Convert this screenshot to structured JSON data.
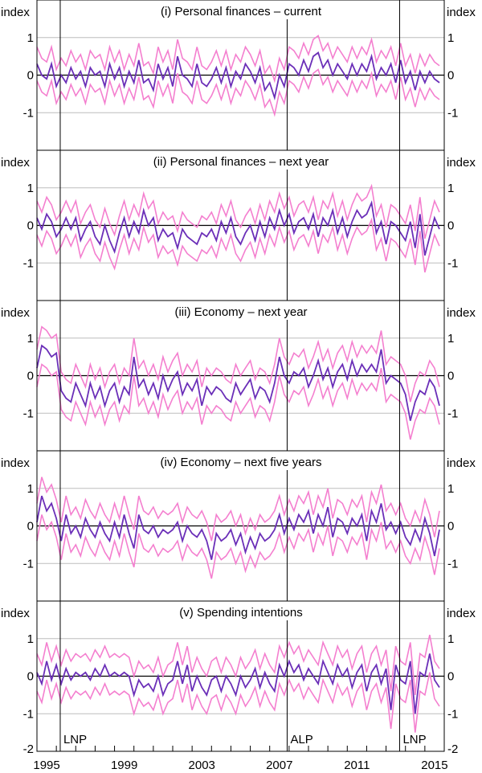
{
  "chart_data": [
    {
      "type": "line",
      "title": "(i) Personal finances – current",
      "ylabel": "index",
      "ylim": [
        -2,
        2
      ],
      "yticks": [
        "1",
        "0",
        "-1"
      ],
      "x_start": 1995.0,
      "x_step": 0.25,
      "band_halfwidth": 0.45,
      "series": [
        {
          "name": "central",
          "values": [
            0.3,
            0.0,
            -0.1,
            0.3,
            -0.3,
            0.0,
            -0.2,
            0.2,
            -0.1,
            0.1,
            -0.3,
            0.2,
            0.0,
            0.1,
            -0.3,
            0.3,
            -0.1,
            0.2,
            -0.3,
            0.1,
            -0.2,
            0.4,
            -0.2,
            -0.1,
            -0.4,
            0.3,
            -0.1,
            0.2,
            -0.3,
            0.5,
            0.0,
            -0.1,
            -0.3,
            0.3,
            -0.2,
            -0.3,
            -0.1,
            0.2,
            -0.2,
            0.2,
            -0.3,
            0.1,
            -0.1,
            0.3,
            0.1,
            -0.2,
            0.2,
            -0.4,
            -0.2,
            -0.6,
            0.0,
            -0.3,
            0.3,
            0.2,
            0.0,
            0.4,
            0.1,
            0.5,
            0.6,
            0.2,
            0.4,
            0.0,
            0.3,
            0.1,
            -0.1,
            0.3,
            0.0,
            0.3,
            0.1,
            0.5,
            -0.1,
            0.2,
            0.0,
            0.3,
            -0.2,
            0.4,
            -0.2,
            0.1,
            -0.4,
            0.1,
            -0.2,
            0.1,
            -0.1,
            -0.2
          ]
        }
      ]
    },
    {
      "type": "line",
      "title": "(ii) Personal finances – next year",
      "ylabel": "index",
      "ylim": [
        -2,
        2
      ],
      "yticks": [
        "1",
        "0",
        "-1"
      ],
      "x_start": 1995.0,
      "x_step": 0.25,
      "band_halfwidth": 0.45,
      "series": [
        {
          "name": "central",
          "values": [
            0.2,
            -0.1,
            0.3,
            0.1,
            -0.3,
            -0.1,
            0.2,
            -0.1,
            0.2,
            -0.4,
            -0.1,
            0.1,
            -0.3,
            -0.5,
            0.0,
            -0.4,
            -0.7,
            -0.2,
            0.2,
            -0.3,
            0.1,
            -0.2,
            0.4,
            0.0,
            0.2,
            -0.4,
            -0.1,
            -0.3,
            -0.2,
            -0.6,
            -0.1,
            -0.3,
            -0.4,
            -0.5,
            -0.2,
            -0.3,
            -0.1,
            -0.4,
            0.1,
            -0.2,
            0.2,
            -0.3,
            -0.5,
            -0.2,
            0.0,
            -0.4,
            0.1,
            -0.3,
            0.2,
            -0.1,
            0.4,
            0.0,
            0.3,
            -0.2,
            0.1,
            0.2,
            -0.1,
            0.3,
            -0.3,
            0.2,
            0.0,
            0.4,
            -0.2,
            0.2,
            -0.3,
            0.1,
            0.4,
            0.2,
            0.3,
            0.6,
            -0.2,
            0.1,
            -0.5,
            0.1,
            0.0,
            -0.2,
            -0.4,
            0.1,
            -0.6,
            0.3,
            -0.8,
            -0.3,
            0.2,
            -0.1
          ]
        }
      ]
    },
    {
      "type": "line",
      "title": "(iii) Economy – next year",
      "ylabel": "index",
      "ylim": [
        -2,
        2
      ],
      "yticks": [
        "1",
        "0",
        "-1"
      ],
      "x_start": 1995.0,
      "x_step": 0.25,
      "band_halfwidth": 0.5,
      "series": [
        {
          "name": "central",
          "values": [
            0.2,
            0.8,
            0.7,
            0.5,
            0.6,
            -0.4,
            -0.6,
            -0.7,
            -0.2,
            -0.5,
            -0.8,
            -0.2,
            -0.6,
            -0.3,
            -0.8,
            -0.4,
            -0.2,
            -0.7,
            -0.3,
            -0.5,
            0.5,
            -0.3,
            -0.1,
            -0.5,
            -0.2,
            -0.6,
            0.0,
            -0.4,
            -0.1,
            0.1,
            -0.5,
            -0.2,
            -0.4,
            -0.1,
            -0.8,
            -0.3,
            -0.5,
            -0.3,
            -0.4,
            -0.6,
            -0.7,
            -0.2,
            -0.5,
            -0.3,
            -0.1,
            -0.6,
            -0.3,
            -0.4,
            -0.7,
            -0.2,
            0.5,
            0.0,
            -0.2,
            0.1,
            0.0,
            0.2,
            -0.3,
            0.0,
            0.4,
            -0.1,
            0.2,
            -0.3,
            0.1,
            0.3,
            -0.1,
            0.4,
            0.0,
            0.3,
            0.1,
            0.3,
            0.1,
            0.7,
            -0.2,
            0.0,
            -0.1,
            -0.2,
            -0.5,
            -1.2,
            -0.7,
            -0.4,
            -0.5,
            -0.1,
            -0.3,
            -0.8
          ]
        }
      ]
    },
    {
      "type": "line",
      "title": "(iv) Economy – next five years",
      "ylabel": "index",
      "ylim": [
        -2,
        2
      ],
      "yticks": [
        "1",
        "0",
        "-1"
      ],
      "x_start": 1995.0,
      "x_step": 0.25,
      "band_halfwidth": 0.5,
      "series": [
        {
          "name": "central",
          "values": [
            0.1,
            0.8,
            0.4,
            0.6,
            0.2,
            -0.4,
            0.3,
            -0.2,
            0.0,
            -0.3,
            0.2,
            -0.1,
            -0.3,
            0.1,
            -0.2,
            -0.4,
            0.1,
            -0.3,
            0.3,
            -0.2,
            -0.6,
            0.3,
            -0.1,
            -0.2,
            0.0,
            -0.3,
            -0.1,
            -0.2,
            -0.1,
            0.1,
            -0.4,
            0.0,
            -0.2,
            -0.3,
            -0.1,
            -0.4,
            -0.9,
            -0.2,
            -0.4,
            -0.3,
            -0.1,
            -0.5,
            -0.2,
            -0.7,
            -0.3,
            -0.6,
            -0.2,
            -0.4,
            -0.3,
            -0.1,
            0.3,
            -0.2,
            0.2,
            -0.1,
            0.3,
            0.1,
            0.4,
            -0.2,
            0.3,
            0.0,
            0.5,
            -0.3,
            0.2,
            0.1,
            -0.2,
            0.2,
            0.0,
            0.3,
            -0.4,
            0.4,
            0.1,
            0.6,
            -0.1,
            0.1,
            -0.2,
            0.1,
            -0.3,
            -0.5,
            -0.1,
            -0.4,
            0.2,
            -0.2,
            -0.8,
            -0.1
          ]
        }
      ]
    },
    {
      "type": "line",
      "title": "(v) Spending intentions",
      "ylabel": "index",
      "ylim": [
        -2,
        2
      ],
      "yticks": [
        "1",
        "0",
        "-1",
        "-2"
      ],
      "x_start": 1995.0,
      "x_step": 0.25,
      "band_halfwidth": 0.5,
      "series": [
        {
          "name": "central",
          "values": [
            0.1,
            -0.2,
            0.4,
            -0.1,
            0.3,
            -0.2,
            0.2,
            -0.1,
            0.1,
            0.0,
            0.1,
            -0.1,
            0.2,
            0.0,
            0.3,
            0.0,
            0.1,
            0.0,
            0.1,
            0.0,
            -0.5,
            -0.1,
            -0.3,
            -0.2,
            -0.4,
            0.0,
            -0.5,
            -0.2,
            -0.1,
            0.4,
            -0.2,
            0.3,
            -0.4,
            0.0,
            -0.3,
            -0.5,
            -0.1,
            0.0,
            -0.4,
            0.0,
            -0.2,
            -0.5,
            0.0,
            -0.3,
            -0.1,
            0.2,
            -0.3,
            0.1,
            -0.2,
            -0.4,
            0.3,
            0.0,
            0.4,
            0.1,
            0.3,
            -0.1,
            0.2,
            0.0,
            -0.2,
            0.4,
            0.1,
            -0.2,
            0.3,
            0.0,
            0.2,
            -0.3,
            0.1,
            0.3,
            -0.4,
            0.1,
            0.3,
            -0.2,
            0.2,
            -0.9,
            0.3,
            -0.1,
            -0.2,
            0.4,
            -1.0,
            0.1,
            0.0,
            0.6,
            -0.1,
            -0.3
          ]
        }
      ]
    }
  ],
  "x_axis": {
    "xlim": [
      1995.0,
      2016.0
    ],
    "tick_labels": [
      "1995",
      "1999",
      "2003",
      "2007",
      "2011",
      "2015"
    ]
  },
  "events": [
    {
      "label": "LNP",
      "date": 1996.2
    },
    {
      "label": "ALP",
      "date": 2007.9
    },
    {
      "label": "LNP",
      "date": 2013.7
    }
  ],
  "colors": {
    "central": "#6b2fb8",
    "band": "#f47fcf",
    "grid": "#bdbdbd",
    "axis": "#000000"
  }
}
